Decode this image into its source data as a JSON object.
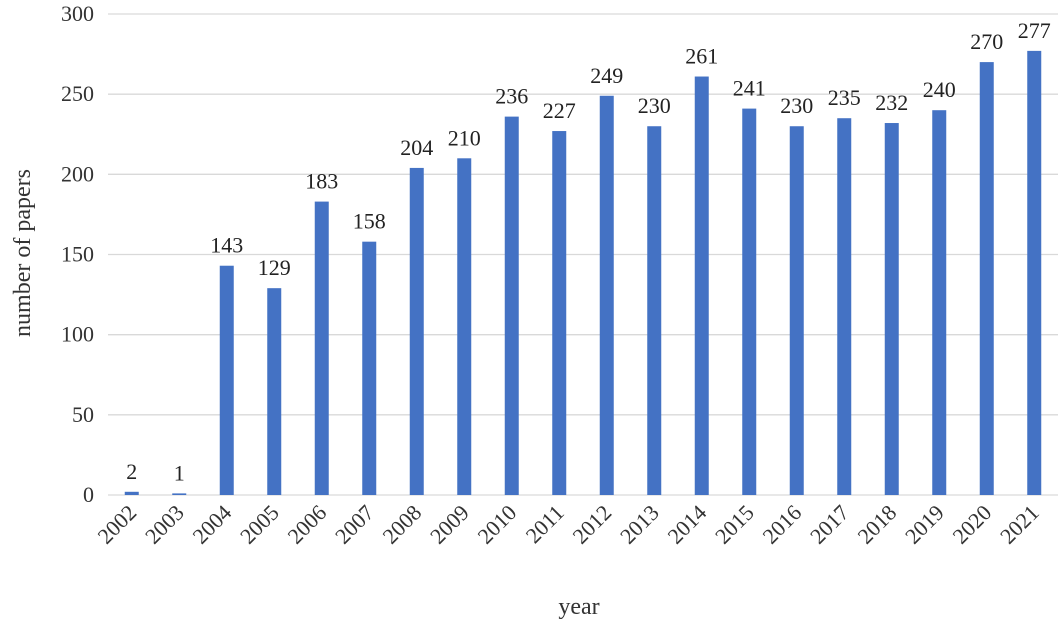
{
  "chart_data": {
    "type": "bar",
    "title": "",
    "xlabel": "year",
    "ylabel": "number of papers",
    "ylim": [
      0,
      300
    ],
    "yticks": [
      0,
      50,
      100,
      150,
      200,
      250,
      300
    ],
    "grid": true,
    "legend": "none",
    "bar_color": "#4472C4",
    "categories": [
      "2002",
      "2003",
      "2004",
      "2005",
      "2006",
      "2007",
      "2008",
      "2009",
      "2010",
      "2011",
      "2012",
      "2013",
      "2014",
      "2015",
      "2016",
      "2017",
      "2018",
      "2019",
      "2020",
      "2021"
    ],
    "values": [
      2,
      1,
      143,
      129,
      183,
      158,
      204,
      210,
      236,
      227,
      249,
      230,
      261,
      241,
      230,
      235,
      232,
      240,
      270,
      277
    ]
  }
}
